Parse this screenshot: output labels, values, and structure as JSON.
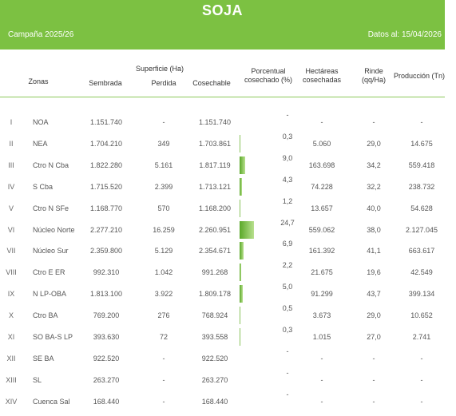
{
  "header": {
    "title": "SOJA",
    "campaign": "Campaña 2025/26",
    "date": "Datos al: 15/04/2026"
  },
  "columns": {
    "zonas": "Zonas",
    "superficie": "Superficie (Ha)",
    "sembrada": "Sembrada",
    "perdida": "Perdida",
    "cosechable": "Cosechable",
    "porcentual": "Porcentual cosechado (%)",
    "hectareas": "Hectáreas cosechadas",
    "rinde": "Rinde (qq/Ha)",
    "produccion": "Producción (Tn)"
  },
  "rows": [
    {
      "num": "I",
      "zona": "NOA",
      "sembrada": "1.151.740",
      "perdida": "-",
      "cosechable": "1.151.740",
      "pct": "-",
      "pct_value": 0,
      "hectareas": "-",
      "rinde": "-",
      "produccion": "-"
    },
    {
      "num": "II",
      "zona": "NEA",
      "sembrada": "1.704.210",
      "perdida": "349",
      "cosechable": "1.703.861",
      "pct": "0,3",
      "pct_value": 0.3,
      "hectareas": "5.060",
      "rinde": "29,0",
      "produccion": "14.675"
    },
    {
      "num": "III",
      "zona": "Ctro N Cba",
      "sembrada": "1.822.280",
      "perdida": "5.161",
      "cosechable": "1.817.119",
      "pct": "9,0",
      "pct_value": 9.0,
      "hectareas": "163.698",
      "rinde": "34,2",
      "produccion": "559.418"
    },
    {
      "num": "IV",
      "zona": "S Cba",
      "sembrada": "1.715.520",
      "perdida": "2.399",
      "cosechable": "1.713.121",
      "pct": "4,3",
      "pct_value": 4.3,
      "hectareas": "74.228",
      "rinde": "32,2",
      "produccion": "238.732"
    },
    {
      "num": "V",
      "zona": "Ctro N SFe",
      "sembrada": "1.168.770",
      "perdida": "570",
      "cosechable": "1.168.200",
      "pct": "1,2",
      "pct_value": 1.2,
      "hectareas": "13.657",
      "rinde": "40,0",
      "produccion": "54.628"
    },
    {
      "num": "VI",
      "zona": "Núcleo Norte",
      "sembrada": "2.277.210",
      "perdida": "16.259",
      "cosechable": "2.260.951",
      "pct": "24,7",
      "pct_value": 24.7,
      "hectareas": "559.062",
      "rinde": "38,0",
      "produccion": "2.127.045"
    },
    {
      "num": "VII",
      "zona": "Núcleo Sur",
      "sembrada": "2.359.800",
      "perdida": "5.129",
      "cosechable": "2.354.671",
      "pct": "6,9",
      "pct_value": 6.9,
      "hectareas": "161.392",
      "rinde": "41,1",
      "produccion": "663.617"
    },
    {
      "num": "VIII",
      "zona": "Ctro E ER",
      "sembrada": "992.310",
      "perdida": "1.042",
      "cosechable": "991.268",
      "pct": "2,2",
      "pct_value": 2.2,
      "hectareas": "21.675",
      "rinde": "19,6",
      "produccion": "42.549"
    },
    {
      "num": "IX",
      "zona": "N LP-OBA",
      "sembrada": "1.813.100",
      "perdida": "3.922",
      "cosechable": "1.809.178",
      "pct": "5,0",
      "pct_value": 5.0,
      "hectareas": "91.299",
      "rinde": "43,7",
      "produccion": "399.134"
    },
    {
      "num": "X",
      "zona": "Ctro BA",
      "sembrada": "769.200",
      "perdida": "276",
      "cosechable": "768.924",
      "pct": "0,5",
      "pct_value": 0.5,
      "hectareas": "3.673",
      "rinde": "29,0",
      "produccion": "10.652"
    },
    {
      "num": "XI",
      "zona": "SO BA-S LP",
      "sembrada": "393.630",
      "perdida": "72",
      "cosechable": "393.558",
      "pct": "0,3",
      "pct_value": 0.3,
      "hectareas": "1.015",
      "rinde": "27,0",
      "produccion": "2.741"
    },
    {
      "num": "XII",
      "zona": "SE BA",
      "sembrada": "922.520",
      "perdida": "-",
      "cosechable": "922.520",
      "pct": "-",
      "pct_value": 0,
      "hectareas": "-",
      "rinde": "-",
      "produccion": "-"
    },
    {
      "num": "XIII",
      "zona": "SL",
      "sembrada": "263.270",
      "perdida": "-",
      "cosechable": "263.270",
      "pct": "-",
      "pct_value": 0,
      "hectareas": "-",
      "rinde": "-",
      "produccion": "-"
    },
    {
      "num": "XIV",
      "zona": "Cuenca Sal",
      "sembrada": "168.440",
      "perdida": "-",
      "cosechable": "168.440",
      "pct": "-",
      "pct_value": 0,
      "hectareas": "-",
      "rinde": "-",
      "produccion": "-"
    }
  ],
  "colors": {
    "accent": "#7cc142",
    "bar": "#5aa829"
  }
}
